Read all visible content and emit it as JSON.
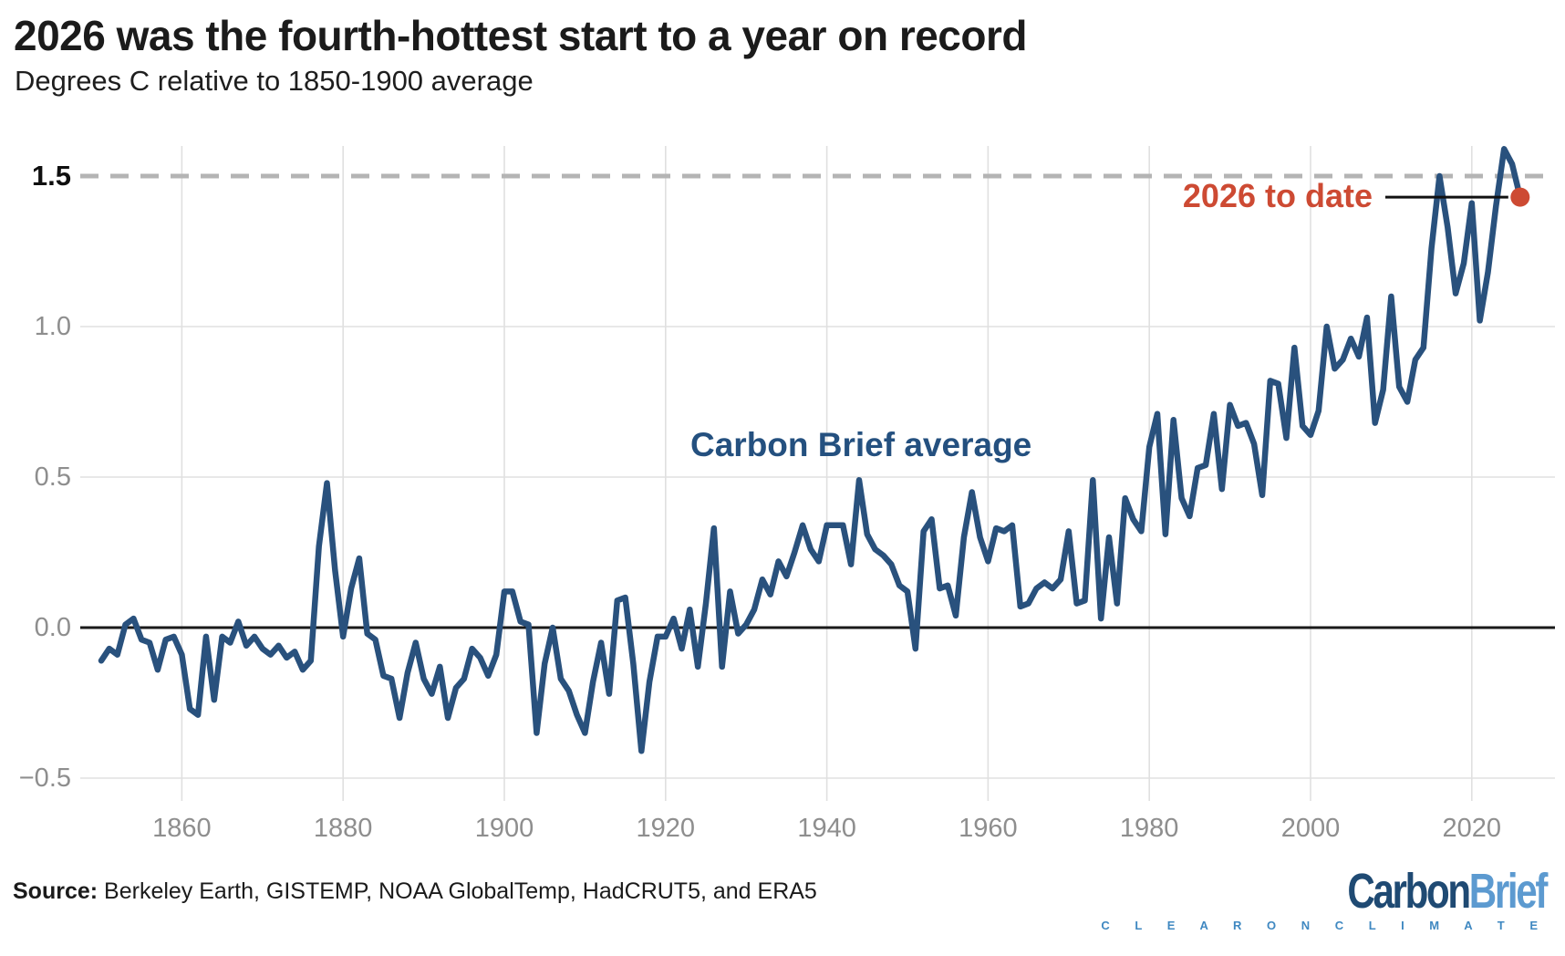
{
  "header": {
    "title": "2026 was the fourth-hottest start to a year on record",
    "subtitle": "Degrees C relative to 1850-1900 average"
  },
  "colors": {
    "line": "#29517d",
    "accent_red": "#cd4a33",
    "grid": "#e0e0e0",
    "dashed_threshold": "#b4b4b4",
    "zero_line": "#1a1a1a",
    "axis_text": "#8e8e8e",
    "text": "#1b1b1b",
    "series_label_blue": "#24507f",
    "logo_dark_blue": "#1f4a73",
    "logo_light_blue": "#5c9ad0",
    "logo_tagline_blue": "#3f88c1"
  },
  "chart_data": {
    "type": "line",
    "title": "2026 was the fourth-hottest start to a year on record",
    "ylabel": "Degrees C relative to 1850-1900 average",
    "xlabel": "",
    "grid": true,
    "legend_position": "inline-label-above-line",
    "xlim": [
      1848,
      2030
    ],
    "ylim": [
      -0.58,
      1.62
    ],
    "reference_line": {
      "value": 1.5,
      "style": "dashed"
    },
    "baseline": {
      "value": 0.0,
      "style": "solid-black"
    },
    "yticks": [
      {
        "label": "1.5",
        "value": 1.5,
        "style": "dashed",
        "bold": true
      },
      {
        "label": "1.0",
        "value": 1.0,
        "style": "grid",
        "bold": false
      },
      {
        "label": "0.5",
        "value": 0.5,
        "style": "grid",
        "bold": false
      },
      {
        "label": "0.0",
        "value": 0.0,
        "style": "zero",
        "bold": false
      },
      {
        "label": "−0.5",
        "value": -0.5,
        "style": "grid",
        "bold": false
      }
    ],
    "xticks": [
      {
        "label": "1860",
        "value": 1860
      },
      {
        "label": "1880",
        "value": 1880
      },
      {
        "label": "1900",
        "value": 1900
      },
      {
        "label": "1920",
        "value": 1920
      },
      {
        "label": "1940",
        "value": 1940
      },
      {
        "label": "1960",
        "value": 1960
      },
      {
        "label": "1980",
        "value": 1980
      },
      {
        "label": "2000",
        "value": 2000
      },
      {
        "label": "2020",
        "value": 2020
      }
    ],
    "annotation": {
      "label": "2026 to date",
      "year": 2026,
      "value": 1.43
    },
    "series": [
      {
        "name": "Carbon Brief average",
        "years": [
          1850,
          1851,
          1852,
          1853,
          1854,
          1855,
          1856,
          1857,
          1858,
          1859,
          1860,
          1861,
          1862,
          1863,
          1864,
          1865,
          1866,
          1867,
          1868,
          1869,
          1870,
          1871,
          1872,
          1873,
          1874,
          1875,
          1876,
          1877,
          1878,
          1879,
          1880,
          1881,
          1882,
          1883,
          1884,
          1885,
          1886,
          1887,
          1888,
          1889,
          1890,
          1891,
          1892,
          1893,
          1894,
          1895,
          1896,
          1897,
          1898,
          1899,
          1900,
          1901,
          1902,
          1903,
          1904,
          1905,
          1906,
          1907,
          1908,
          1909,
          1910,
          1911,
          1912,
          1913,
          1914,
          1915,
          1916,
          1917,
          1918,
          1919,
          1920,
          1921,
          1922,
          1923,
          1924,
          1925,
          1926,
          1927,
          1928,
          1929,
          1930,
          1931,
          1932,
          1933,
          1934,
          1935,
          1936,
          1937,
          1938,
          1939,
          1940,
          1941,
          1942,
          1943,
          1944,
          1945,
          1946,
          1947,
          1948,
          1949,
          1950,
          1951,
          1952,
          1953,
          1954,
          1955,
          1956,
          1957,
          1958,
          1959,
          1960,
          1961,
          1962,
          1963,
          1964,
          1965,
          1966,
          1967,
          1968,
          1969,
          1970,
          1971,
          1972,
          1973,
          1974,
          1975,
          1976,
          1977,
          1978,
          1979,
          1980,
          1981,
          1982,
          1983,
          1984,
          1985,
          1986,
          1987,
          1988,
          1989,
          1990,
          1991,
          1992,
          1993,
          1994,
          1995,
          1996,
          1997,
          1998,
          1999,
          2000,
          2001,
          2002,
          2003,
          2004,
          2005,
          2006,
          2007,
          2008,
          2009,
          2010,
          2011,
          2012,
          2013,
          2014,
          2015,
          2016,
          2017,
          2018,
          2019,
          2020,
          2021,
          2022,
          2023,
          2024,
          2025,
          2026
        ],
        "values": [
          -0.11,
          -0.07,
          -0.09,
          0.01,
          0.03,
          -0.04,
          -0.05,
          -0.14,
          -0.04,
          -0.03,
          -0.09,
          -0.27,
          -0.29,
          -0.03,
          -0.24,
          -0.03,
          -0.05,
          0.02,
          -0.06,
          -0.03,
          -0.07,
          -0.09,
          -0.06,
          -0.1,
          -0.08,
          -0.14,
          -0.11,
          0.27,
          0.48,
          0.19,
          -0.03,
          0.13,
          0.23,
          -0.02,
          -0.04,
          -0.16,
          -0.17,
          -0.3,
          -0.15,
          -0.05,
          -0.17,
          -0.22,
          -0.13,
          -0.3,
          -0.2,
          -0.17,
          -0.07,
          -0.1,
          -0.16,
          -0.09,
          0.12,
          0.12,
          0.02,
          0.01,
          -0.35,
          -0.12,
          0.0,
          -0.17,
          -0.21,
          -0.29,
          -0.35,
          -0.18,
          -0.05,
          -0.22,
          0.09,
          0.1,
          -0.12,
          -0.41,
          -0.18,
          -0.03,
          -0.03,
          0.03,
          -0.07,
          0.06,
          -0.13,
          0.08,
          0.33,
          -0.13,
          0.12,
          -0.02,
          0.01,
          0.06,
          0.16,
          0.11,
          0.22,
          0.17,
          0.25,
          0.34,
          0.26,
          0.22,
          0.34,
          0.34,
          0.34,
          0.21,
          0.49,
          0.31,
          0.26,
          0.24,
          0.21,
          0.14,
          0.12,
          -0.07,
          0.32,
          0.36,
          0.13,
          0.14,
          0.04,
          0.3,
          0.45,
          0.3,
          0.22,
          0.33,
          0.32,
          0.34,
          0.07,
          0.08,
          0.13,
          0.15,
          0.13,
          0.16,
          0.32,
          0.08,
          0.09,
          0.49,
          0.03,
          0.3,
          0.08,
          0.43,
          0.36,
          0.32,
          0.6,
          0.71,
          0.31,
          0.69,
          0.43,
          0.37,
          0.53,
          0.54,
          0.71,
          0.46,
          0.74,
          0.67,
          0.68,
          0.61,
          0.44,
          0.82,
          0.81,
          0.63,
          0.93,
          0.67,
          0.64,
          0.72,
          1.0,
          0.86,
          0.89,
          0.96,
          0.9,
          1.03,
          0.68,
          0.79,
          1.1,
          0.8,
          0.75,
          0.89,
          0.93,
          1.26,
          1.5,
          1.33,
          1.11,
          1.21,
          1.41,
          1.02,
          1.18,
          1.4,
          1.59,
          1.54,
          1.43
        ]
      }
    ]
  },
  "footer": {
    "source_label": "Source:",
    "source_text": " Berkeley Earth, GISTEMP, NOAA GlobalTemp, HadCRUT5, and ERA5",
    "logo": {
      "word_part1": "Carbon",
      "word_part2": "Brief",
      "tagline": "C L E A R   O N   C L I M A T E"
    }
  }
}
